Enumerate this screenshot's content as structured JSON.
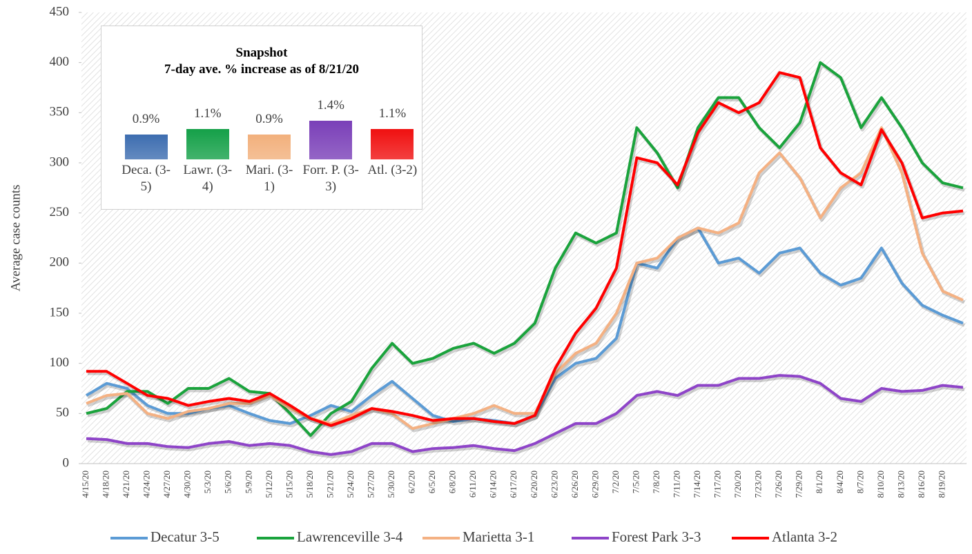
{
  "chart_data": [
    {
      "type": "line",
      "y_label": "Average case counts",
      "categories": [
        "4/15/20",
        "4/18/20",
        "4/21/20",
        "4/24/20",
        "4/27/20",
        "4/30/20",
        "5/3/20",
        "5/6/20",
        "5/9/20",
        "5/12/20",
        "5/15/20",
        "5/18/20",
        "5/21/20",
        "5/24/20",
        "5/27/20",
        "5/30/20",
        "6/2/20",
        "6/5/20",
        "6/8/20",
        "6/11/20",
        "6/14/20",
        "6/17/20",
        "6/20/20",
        "6/23/20",
        "6/26/20",
        "6/29/20",
        "7/2/20",
        "7/5/20",
        "7/8/20",
        "7/11/20",
        "7/14/20",
        "7/17/20",
        "7/20/20",
        "7/23/20",
        "7/26/20",
        "7/29/20",
        "8/1/20",
        "8/4/20",
        "8/7/20",
        "8/10/20",
        "8/13/20",
        "8/16/20",
        "8/19/20",
        null
      ],
      "series": [
        {
          "name": "Decatur 3-5",
          "color": "#5b9bd5",
          "values": [
            68,
            80,
            75,
            58,
            50,
            50,
            55,
            58,
            50,
            43,
            40,
            48,
            58,
            52,
            68,
            82,
            65,
            48,
            42,
            45,
            43,
            40,
            48,
            85,
            100,
            105,
            125,
            200,
            195,
            225,
            235,
            200,
            205,
            190,
            210,
            215,
            190,
            178,
            185,
            215,
            180,
            158,
            148,
            140
          ]
        },
        {
          "name": "Lawrenceville 3-4",
          "color": "#1aa33c",
          "values": [
            50,
            55,
            72,
            72,
            60,
            75,
            75,
            85,
            72,
            70,
            50,
            28,
            50,
            62,
            95,
            120,
            100,
            105,
            115,
            120,
            110,
            120,
            140,
            195,
            230,
            220,
            230,
            335,
            310,
            275,
            335,
            365,
            365,
            335,
            315,
            340,
            400,
            385,
            335,
            365,
            335,
            300,
            280,
            275
          ]
        },
        {
          "name": "Marietta 3-1",
          "color": "#f4b183",
          "values": [
            60,
            68,
            70,
            50,
            45,
            52,
            55,
            60,
            60,
            68,
            55,
            45,
            40,
            48,
            55,
            50,
            35,
            40,
            45,
            50,
            58,
            50,
            50,
            90,
            110,
            120,
            150,
            200,
            205,
            225,
            235,
            230,
            240,
            290,
            310,
            285,
            245,
            275,
            290,
            335,
            290,
            210,
            172,
            163
          ]
        },
        {
          "name": "Forest Park 3-3",
          "color": "#8e44c8",
          "values": [
            25,
            24,
            20,
            20,
            17,
            16,
            20,
            22,
            18,
            20,
            18,
            12,
            9,
            12,
            20,
            20,
            12,
            15,
            16,
            18,
            15,
            13,
            20,
            30,
            40,
            40,
            50,
            68,
            72,
            68,
            78,
            78,
            85,
            85,
            88,
            87,
            80,
            65,
            62,
            75,
            72,
            73,
            78,
            76
          ]
        },
        {
          "name": "Atlanta 3-2",
          "color": "#ff0000",
          "values": [
            92,
            92,
            80,
            68,
            65,
            58,
            62,
            65,
            62,
            70,
            58,
            45,
            38,
            45,
            55,
            52,
            48,
            43,
            45,
            45,
            42,
            40,
            48,
            95,
            130,
            155,
            195,
            305,
            300,
            278,
            330,
            360,
            350,
            360,
            390,
            385,
            315,
            290,
            278,
            333,
            300,
            245,
            250,
            252
          ]
        }
      ],
      "ylim": [
        0,
        450
      ],
      "yticks": [
        0,
        50,
        100,
        150,
        200,
        250,
        300,
        350,
        400,
        450
      ],
      "legend": "bottom"
    },
    {
      "type": "bar",
      "title": "Snapshot",
      "subtitle": "7-day ave. % increase as of 8/21/20",
      "categories": [
        "Deca. (3-5)",
        "Lawr. (3-4)",
        "Mari. (3-1)",
        "Forr. P. (3-3)",
        "Atl. (3-2)"
      ],
      "values": [
        0.9,
        1.1,
        0.9,
        1.4,
        1.1
      ],
      "value_labels": [
        "0.9%",
        "1.1%",
        "0.9%",
        "1.4%",
        "1.1%"
      ],
      "colors": [
        "#3d6db0",
        "#14a048",
        "#f2b07c",
        "#7a3fb8",
        "#f01010"
      ],
      "ylim": [
        0,
        1.5
      ]
    }
  ]
}
